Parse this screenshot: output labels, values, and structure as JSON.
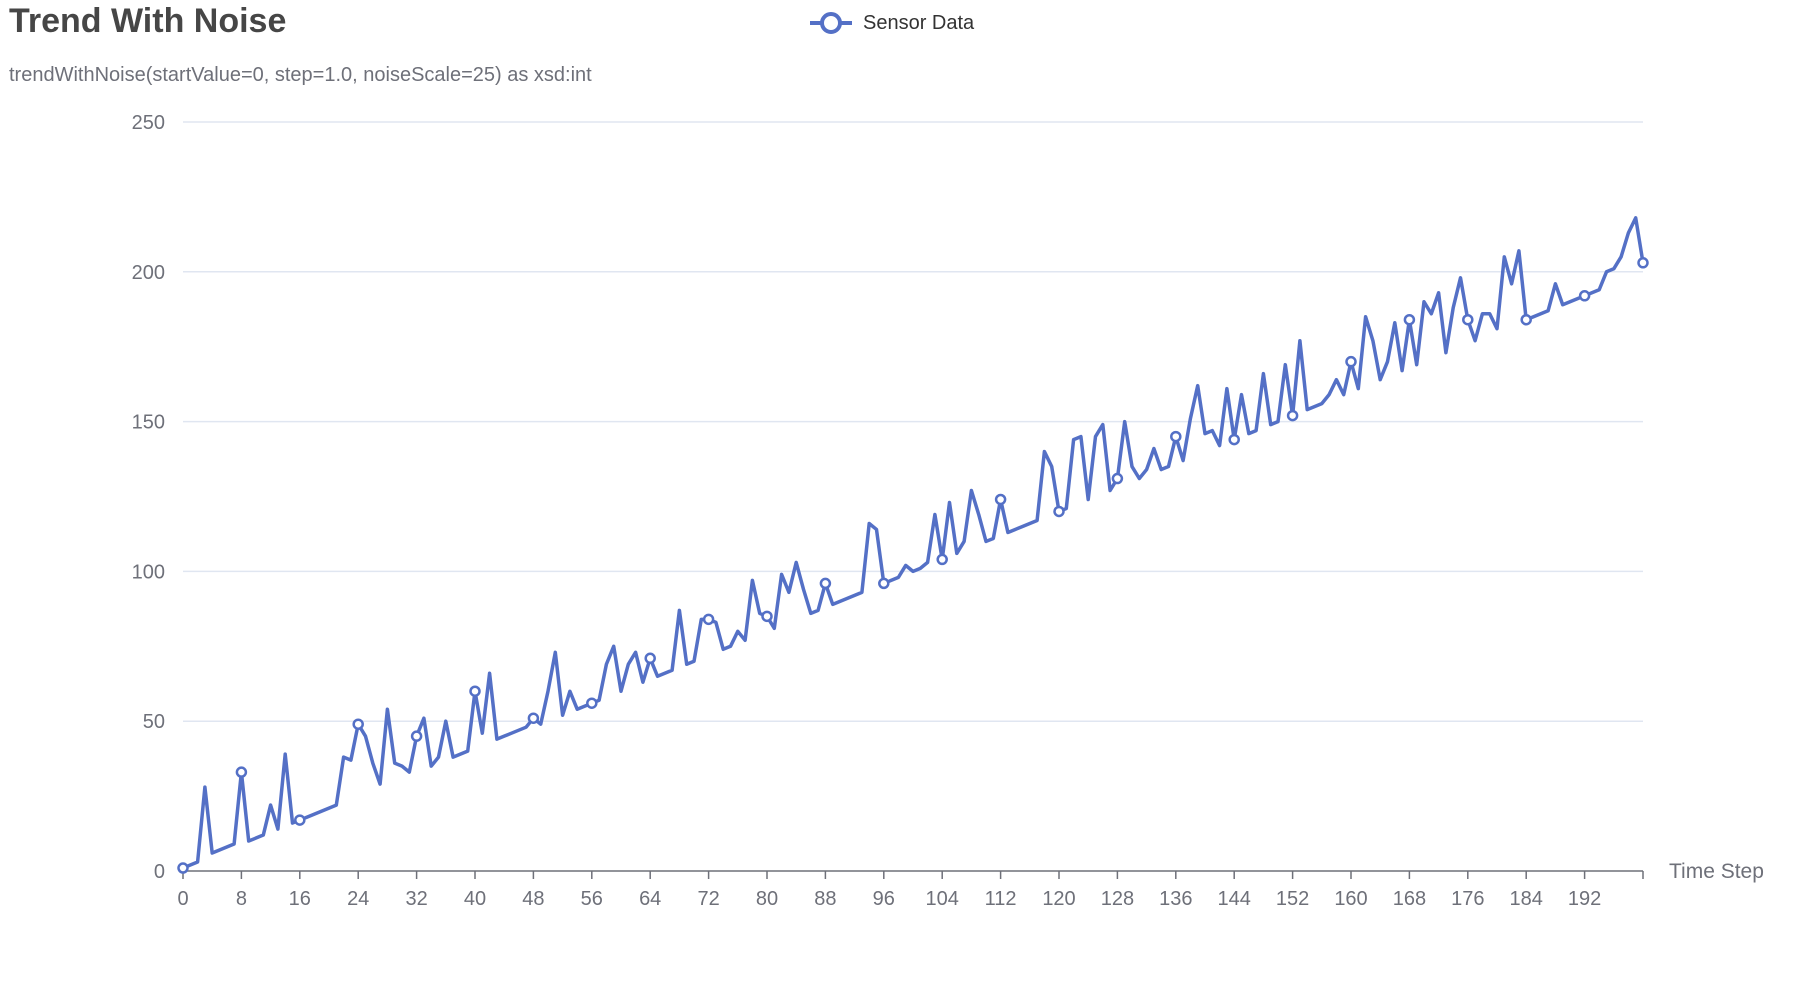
{
  "title": "Trend With Noise",
  "subtitle": "trendWithNoise(startValue=0, step=1.0, noiseScale=25) as xsd:int",
  "legend": {
    "label": "Sensor Data",
    "color": "#5470c6"
  },
  "chart_data": {
    "type": "line",
    "title": "Trend With Noise",
    "subtitle": "trendWithNoise(startValue=0, step=1.0, noiseScale=25) as xsd:int",
    "xlabel": "Time Step",
    "ylabel": "",
    "xlim": [
      0,
      200
    ],
    "ylim": [
      0,
      250
    ],
    "x_ticks": [
      0,
      8,
      16,
      24,
      32,
      40,
      48,
      56,
      64,
      72,
      80,
      88,
      96,
      104,
      112,
      120,
      128,
      136,
      144,
      152,
      160,
      168,
      176,
      184,
      192
    ],
    "y_ticks": [
      0,
      50,
      100,
      150,
      200,
      250
    ],
    "grid": true,
    "legend_position": "top-center",
    "color": "#5470c6",
    "series": [
      {
        "name": "Sensor Data",
        "values": [
          1,
          2,
          3,
          28,
          6,
          7,
          8,
          9,
          33,
          10,
          11,
          12,
          22,
          14,
          39,
          16,
          17,
          18,
          19,
          20,
          21,
          22,
          38,
          37,
          49,
          45,
          36,
          29,
          54,
          36,
          35,
          33,
          45,
          51,
          35,
          38,
          50,
          38,
          39,
          40,
          60,
          46,
          66,
          44,
          45,
          46,
          47,
          48,
          51,
          49,
          60,
          73,
          52,
          60,
          54,
          55,
          56,
          57,
          69,
          75,
          60,
          69,
          73,
          63,
          71,
          65,
          66,
          67,
          87,
          69,
          70,
          84,
          84,
          83,
          74,
          75,
          80,
          77,
          97,
          86,
          85,
          81,
          99,
          93,
          103,
          94,
          86,
          87,
          96,
          89,
          90,
          91,
          92,
          93,
          116,
          114,
          96,
          97,
          98,
          102,
          100,
          101,
          103,
          119,
          104,
          123,
          106,
          110,
          127,
          119,
          110,
          111,
          124,
          113,
          114,
          115,
          116,
          117,
          140,
          135,
          120,
          121,
          144,
          145,
          124,
          145,
          149,
          127,
          131,
          150,
          135,
          131,
          134,
          141,
          134,
          135,
          145,
          137,
          151,
          162,
          146,
          147,
          142,
          161,
          144,
          159,
          146,
          147,
          166,
          149,
          150,
          169,
          152,
          177,
          154,
          155,
          156,
          159,
          164,
          159,
          170,
          161,
          185,
          177,
          164,
          170,
          183,
          167,
          184,
          169,
          190,
          186,
          193,
          173,
          188,
          198,
          184,
          177,
          186,
          186,
          181,
          205,
          196,
          207,
          184,
          185,
          186,
          187,
          196,
          189,
          190,
          191,
          192,
          193,
          194,
          200,
          201,
          205,
          213,
          218,
          203
        ]
      }
    ]
  }
}
